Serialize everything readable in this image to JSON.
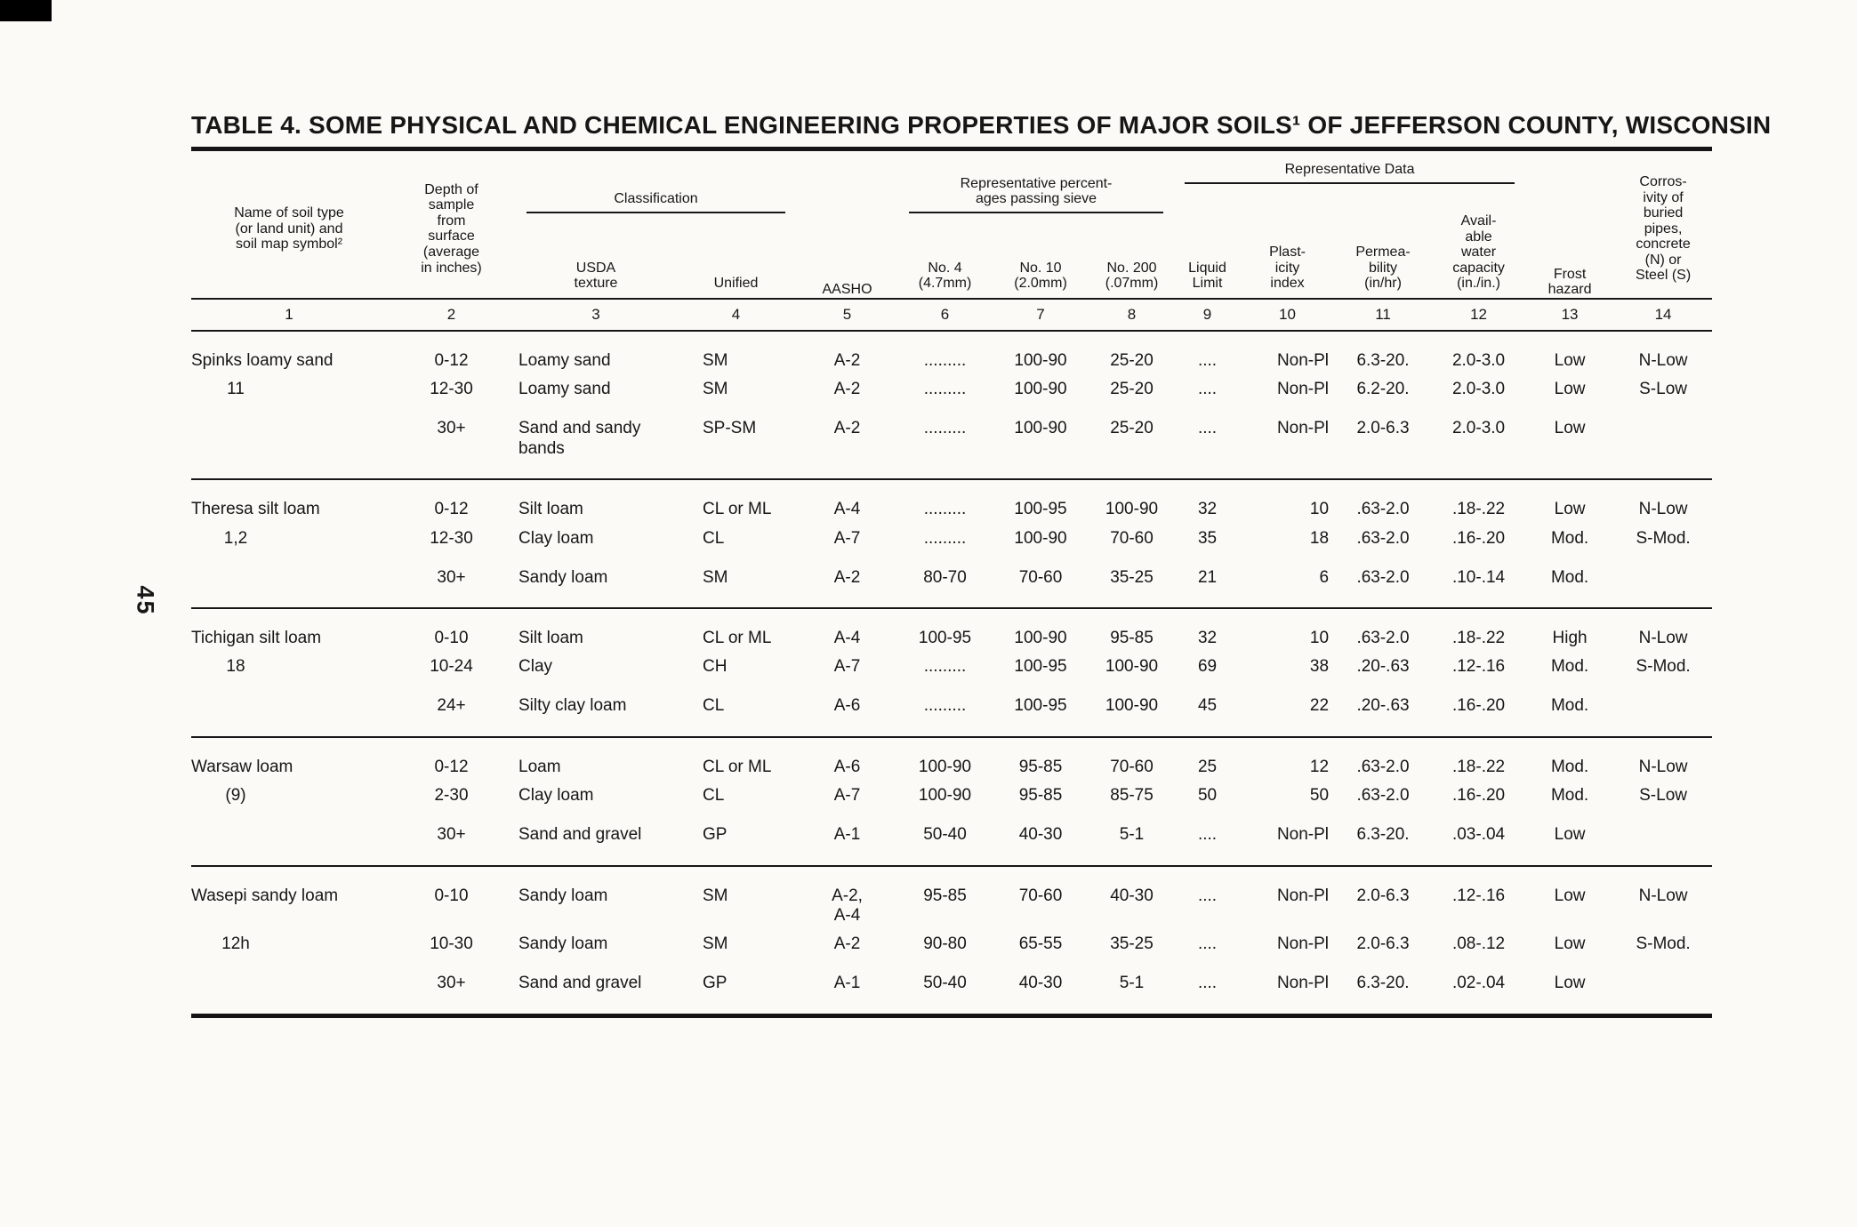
{
  "page": {
    "number": "45"
  },
  "title": "TABLE 4. SOME PHYSICAL AND CHEMICAL ENGINEERING PROPERTIES OF MAJOR SOILS¹ OF JEFFERSON COUNTY, WISCONSIN",
  "table": {
    "groups_header": {
      "name": "Name of soil type\n(or land unit) and\nsoil map symbol²",
      "depth": "Depth of\nsample\nfrom\nsurface\n(average\nin inches)",
      "classification": "Classification",
      "aasho": "AASHO",
      "sieve": "Representative percent-\nages passing sieve",
      "repdata": "Representative Data",
      "frost": "Frost\nhazard",
      "corrosivity": "Corros-\nivity of\nburied\npipes,\nconcrete\n(N) or\nSteel (S)"
    },
    "sub_header": {
      "usda": "USDA\ntexture",
      "unified": "Unified",
      "no4": "No. 4\n(4.7mm)",
      "no10": "No. 10\n(2.0mm)",
      "no200": "No. 200\n(.07mm)",
      "liquid_limit": "Liquid\nLimit",
      "plasticity": "Plast-\nicity\nindex",
      "permeability": "Permea-\nbility\n(in/hr)",
      "awc": "Avail-\nable\nwater\ncapacity\n(in./in.)"
    },
    "column_numbers": [
      "1",
      "2",
      "3",
      "4",
      "5",
      "6",
      "7",
      "8",
      "9",
      "10",
      "11",
      "12",
      "13",
      "14"
    ],
    "groups": [
      {
        "name": "Spinks loamy sand",
        "symbol": "11",
        "rows": [
          {
            "depth": "0-12",
            "usda": "Loamy sand",
            "unified": "SM",
            "aasho": "A-2",
            "no4": ".........",
            "no10": "100-90",
            "no200": "25-20",
            "ll": "....",
            "pi": "Non-Pl",
            "perm": "6.3-20.",
            "awc": "2.0-3.0",
            "frost": "Low",
            "corr": "N-Low"
          },
          {
            "depth": "12-30",
            "usda": "Loamy sand",
            "unified": "SM",
            "aasho": "A-2",
            "no4": ".........",
            "no10": "100-90",
            "no200": "25-20",
            "ll": "....",
            "pi": "Non-Pl",
            "perm": "6.2-20.",
            "awc": "2.0-3.0",
            "frost": "Low",
            "corr": "S-Low"
          },
          {
            "depth": "30+",
            "usda": "Sand and sandy bands",
            "unified": "SP-SM",
            "aasho": "A-2",
            "no4": ".........",
            "no10": "100-90",
            "no200": "25-20",
            "ll": "....",
            "pi": "Non-Pl",
            "perm": "2.0-6.3",
            "awc": "2.0-3.0",
            "frost": "Low",
            "corr": ""
          }
        ]
      },
      {
        "name": "Theresa silt loam",
        "symbol": "1,2",
        "rows": [
          {
            "depth": "0-12",
            "usda": "Silt loam",
            "unified": "CL or ML",
            "aasho": "A-4",
            "no4": ".........",
            "no10": "100-95",
            "no200": "100-90",
            "ll": "32",
            "pi": "10",
            "perm": ".63-2.0",
            "awc": ".18-.22",
            "frost": "Low",
            "corr": "N-Low"
          },
          {
            "depth": "12-30",
            "usda": "Clay loam",
            "unified": "CL",
            "aasho": "A-7",
            "no4": ".........",
            "no10": "100-90",
            "no200": "70-60",
            "ll": "35",
            "pi": "18",
            "perm": ".63-2.0",
            "awc": ".16-.20",
            "frost": "Mod.",
            "corr": "S-Mod."
          },
          {
            "depth": "30+",
            "usda": "Sandy loam",
            "unified": "SM",
            "aasho": "A-2",
            "no4": "80-70",
            "no10": "70-60",
            "no200": "35-25",
            "ll": "21",
            "pi": "6",
            "perm": ".63-2.0",
            "awc": ".10-.14",
            "frost": "Mod.",
            "corr": ""
          }
        ]
      },
      {
        "name": "Tichigan silt loam",
        "symbol": "18",
        "rows": [
          {
            "depth": "0-10",
            "usda": "Silt loam",
            "unified": "CL or ML",
            "aasho": "A-4",
            "no4": "100-95",
            "no10": "100-90",
            "no200": "95-85",
            "ll": "32",
            "pi": "10",
            "perm": ".63-2.0",
            "awc": ".18-.22",
            "frost": "High",
            "corr": "N-Low"
          },
          {
            "depth": "10-24",
            "usda": "Clay",
            "unified": "CH",
            "aasho": "A-7",
            "no4": ".........",
            "no10": "100-95",
            "no200": "100-90",
            "ll": "69",
            "pi": "38",
            "perm": ".20-.63",
            "awc": ".12-.16",
            "frost": "Mod.",
            "corr": "S-Mod."
          },
          {
            "depth": "24+",
            "usda": "Silty clay loam",
            "unified": "CL",
            "aasho": "A-6",
            "no4": ".........",
            "no10": "100-95",
            "no200": "100-90",
            "ll": "45",
            "pi": "22",
            "perm": ".20-.63",
            "awc": ".16-.20",
            "frost": "Mod.",
            "corr": ""
          }
        ]
      },
      {
        "name": "Warsaw loam",
        "symbol": "(9)",
        "rows": [
          {
            "depth": "0-12",
            "usda": "Loam",
            "unified": "CL or ML",
            "aasho": "A-6",
            "no4": "100-90",
            "no10": "95-85",
            "no200": "70-60",
            "ll": "25",
            "pi": "12",
            "perm": ".63-2.0",
            "awc": ".18-.22",
            "frost": "Mod.",
            "corr": "N-Low"
          },
          {
            "depth": "2-30",
            "usda": "Clay loam",
            "unified": "CL",
            "aasho": "A-7",
            "no4": "100-90",
            "no10": "95-85",
            "no200": "85-75",
            "ll": "50",
            "pi": "50",
            "perm": ".63-2.0",
            "awc": ".16-.20",
            "frost": "Mod.",
            "corr": "S-Low"
          },
          {
            "depth": "30+",
            "usda": "Sand and gravel",
            "unified": "GP",
            "aasho": "A-1",
            "no4": "50-40",
            "no10": "40-30",
            "no200": "5-1",
            "ll": "....",
            "pi": "Non-Pl",
            "perm": "6.3-20.",
            "awc": ".03-.04",
            "frost": "Low",
            "corr": ""
          }
        ]
      },
      {
        "name": "Wasepi sandy loam",
        "symbol": "12h",
        "rows": [
          {
            "depth": "0-10",
            "usda": "Sandy loam",
            "unified": "SM",
            "aasho": "A-2,\nA-4",
            "no4": "95-85",
            "no10": "70-60",
            "no200": "40-30",
            "ll": "....",
            "pi": "Non-Pl",
            "perm": "2.0-6.3",
            "awc": ".12-.16",
            "frost": "Low",
            "corr": "N-Low"
          },
          {
            "depth": "10-30",
            "usda": "Sandy loam",
            "unified": "SM",
            "aasho": "A-2",
            "no4": "90-80",
            "no10": "65-55",
            "no200": "35-25",
            "ll": "....",
            "pi": "Non-Pl",
            "perm": "2.0-6.3",
            "awc": ".08-.12",
            "frost": "Low",
            "corr": "S-Mod."
          },
          {
            "depth": "30+",
            "usda": "Sand and gravel",
            "unified": "GP",
            "aasho": "A-1",
            "no4": "50-40",
            "no10": "40-30",
            "no200": "5-1",
            "ll": "....",
            "pi": "Non-Pl",
            "perm": "6.3-20.",
            "awc": ".02-.04",
            "frost": "Low",
            "corr": ""
          }
        ]
      }
    ]
  }
}
